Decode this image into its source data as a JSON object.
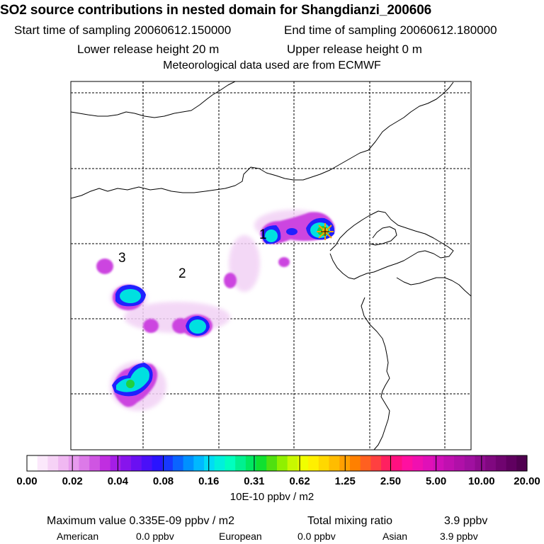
{
  "header": {
    "title": "SO2 source contributions in nested domain for Shangdianzi_200606",
    "start_label": "Start time of sampling 20060612.150000",
    "end_label": "End time of sampling 20060612.180000",
    "lower_label": "Lower release height   20 m",
    "upper_label": "Upper release height    0 m",
    "met_label": "Meteorological data used are from ECMWF"
  },
  "map": {
    "region_labels": [
      "1",
      "2",
      "3"
    ],
    "receptor_marker": "star-icon",
    "colors": {
      "background": "#ffffff",
      "light": "#f2d2f5",
      "magenta": "#cc44e0",
      "purple": "#8a2be2",
      "blue": "#2020ff",
      "cyan": "#00e0e0",
      "green": "#20d040",
      "yellow": "#ffff00",
      "marker": "#f5a000"
    }
  },
  "colorbar": {
    "labels": [
      "0.00",
      "0.02",
      "0.04",
      "0.08",
      "0.16",
      "0.31",
      "0.62",
      "1.25",
      "2.50",
      "5.00",
      "10.00",
      "20.00"
    ],
    "colors": [
      "#ffffff",
      "#fbe8fb",
      "#f6d2f6",
      "#f0b8f2",
      "#e79aee",
      "#dc7ae8",
      "#cf55e2",
      "#c02ee0",
      "#a51ee6",
      "#8714ec",
      "#6a10f2",
      "#4a10f8",
      "#2a14ff",
      "#1838ff",
      "#0a64ff",
      "#0090ff",
      "#00b8ff",
      "#00dcf5",
      "#00f0dc",
      "#00ffbe",
      "#00f090",
      "#00e860",
      "#10e030",
      "#50e010",
      "#90f000",
      "#c8f800",
      "#f0ff00",
      "#fff000",
      "#ffd800",
      "#ffbc00",
      "#ffa000",
      "#ff8000",
      "#ff6020",
      "#ff4040",
      "#ff2060",
      "#ff1080",
      "#ff10a0",
      "#f010b0",
      "#e010b8",
      "#d010b8",
      "#c010b0",
      "#b010a8",
      "#a010a0",
      "#900c90",
      "#800880",
      "#700470",
      "#600060",
      "#500050"
    ],
    "units": "10E-10 ppbv / m2"
  },
  "summary": {
    "max_label": "Maximum value  0.335E-09 ppbv / m2",
    "total_label": "Total mixing ratio",
    "total_value": "3.9 ppbv",
    "american_label": "American",
    "american_value": "0.0 ppbv",
    "european_label": "European",
    "european_value": "0.0 ppbv",
    "asian_label": "Asian",
    "asian_value": "3.9 ppbv"
  }
}
